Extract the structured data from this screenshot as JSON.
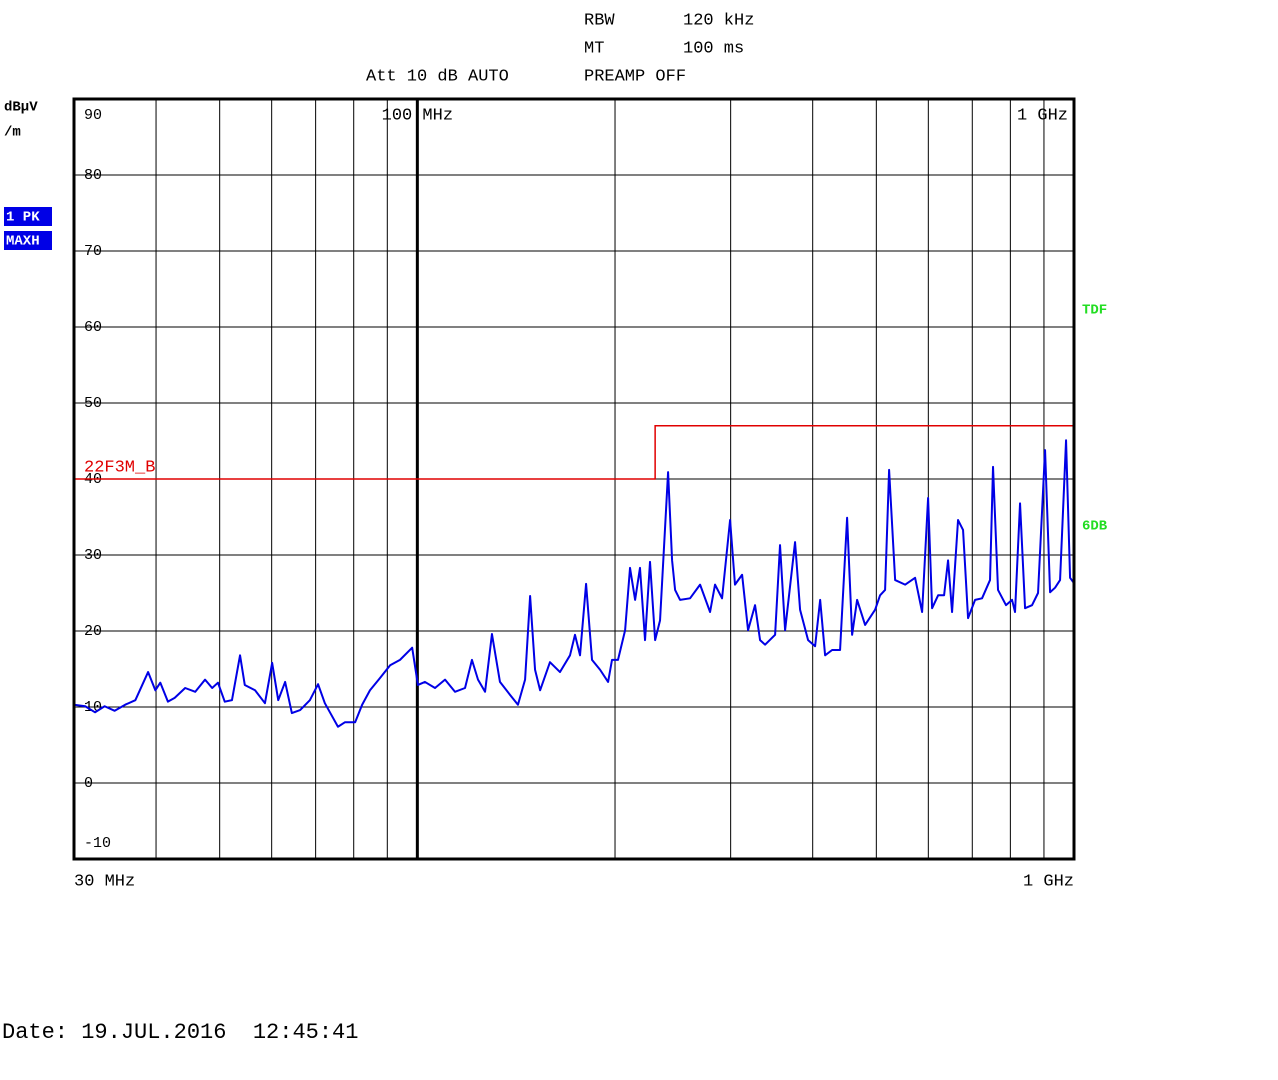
{
  "header": {
    "rbw_label": "RBW",
    "rbw_value": "120 kHz",
    "mt_label": "MT",
    "mt_value": "100 ms",
    "att": "Att 10 dB AUTO",
    "preamp": "PREAMP OFF"
  },
  "side": {
    "unit_1": "dBµV",
    "unit_2": "/m",
    "trace_mode_1": "1 PK",
    "trace_mode_2": "MAXH",
    "marker_tdf": "TDF",
    "marker_6db": "6DB"
  },
  "date": "Date: 19.JUL.2016  12:45:41",
  "chart_data": {
    "type": "line",
    "x_log": true,
    "grid": true,
    "xlim": [
      30,
      1000
    ],
    "ylim": [
      -10,
      90
    ],
    "yticks": [
      -10,
      0,
      10,
      20,
      30,
      40,
      50,
      60,
      70,
      80,
      90
    ],
    "xticks": [
      {
        "value": 30,
        "label": "30 MHz"
      },
      {
        "value": 1000,
        "label": "1 GHz"
      }
    ],
    "xticks_top": [
      {
        "value": 100,
        "label": "100 MHz"
      },
      {
        "value": 1000,
        "label": "1 GHz"
      }
    ],
    "xgrid": [
      40,
      50,
      60,
      70,
      80,
      90,
      100,
      200,
      300,
      400,
      500,
      600,
      700,
      800,
      900
    ],
    "xgrid_bold": [
      100
    ],
    "x": [
      30.0,
      31.2,
      32.3,
      33.4,
      34.6,
      35.9,
      37.2,
      38.9,
      39.9,
      40.6,
      41.7,
      42.7,
      44.3,
      45.9,
      47.5,
      48.7,
      49.7,
      50.9,
      52.2,
      53.7,
      54.6,
      56.6,
      58.6,
      60.1,
      61.4,
      62.9,
      64.4,
      66.3,
      68.6,
      70.6,
      72.3,
      73.6,
      75.7,
      77.6,
      80.4,
      82.4,
      84.7,
      87.7,
      90.9,
      94.1,
      98.2,
      100.2,
      102.7,
      106.4,
      110.2,
      114.1,
      118.2,
      121.1,
      123.7,
      126.8,
      129.9,
      133.6,
      138.4,
      142.3,
      145.9,
      148.5,
      151.1,
      153.8,
      159.2,
      164.9,
      170.8,
      173.8,
      176.9,
      180.7,
      184.5,
      189.8,
      195.2,
      197.9,
      202.1,
      207.2,
      210.8,
      214.6,
      218.3,
      222.2,
      226.1,
      230.2,
      234.2,
      240.9,
      244.3,
      246.9,
      251.2,
      260.2,
      269.5,
      279.1,
      284.0,
      291.1,
      299.4,
      304.6,
      312.3,
      318.9,
      326.8,
      332.6,
      338.5,
      350.6,
      356.7,
      363.1,
      376.0,
      382.7,
      393.6,
      403.4,
      410.6,
      417.8,
      428.2,
      440.3,
      451.3,
      459.3,
      467.4,
      480.7,
      497.9,
      506.6,
      515.6,
      522.9,
      534.1,
      553.1,
      572.8,
      587.1,
      599.5,
      608.0,
      621.0,
      634.1,
      643.0,
      652.1,
      665.9,
      677.7,
      689.7,
      706.9,
      724.4,
      744.9,
      752.8,
      766.1,
      787.9,
      804.7,
      813.2,
      827.6,
      842.3,
      863.2,
      881.5,
      903.5,
      919.5,
      935.8,
      952.3,
      972.5,
      986.3,
      1000.0
    ],
    "series": [
      {
        "color": "#0000e6",
        "values": [
          10.3,
          10.1,
          9.3,
          10.1,
          9.5,
          10.3,
          10.9,
          14.6,
          12.2,
          13.2,
          10.7,
          11.2,
          12.5,
          12.0,
          13.6,
          12.5,
          13.2,
          10.7,
          10.9,
          16.8,
          12.9,
          12.2,
          10.5,
          15.8,
          10.9,
          13.3,
          9.2,
          9.6,
          10.9,
          13.0,
          10.5,
          9.3,
          7.4,
          8.0,
          8.0,
          10.3,
          12.2,
          13.8,
          15.5,
          16.2,
          17.8,
          12.9,
          13.3,
          12.5,
          13.6,
          12.0,
          12.5,
          16.2,
          13.6,
          12.0,
          19.6,
          13.3,
          11.6,
          10.3,
          13.6,
          24.6,
          14.9,
          12.2,
          15.9,
          14.6,
          16.8,
          19.5,
          16.8,
          26.2,
          16.2,
          14.9,
          13.3,
          16.2,
          16.2,
          20.1,
          28.3,
          24.1,
          28.3,
          18.8,
          29.1,
          18.8,
          21.4,
          40.9,
          29.3,
          25.4,
          24.1,
          24.3,
          26.1,
          22.5,
          26.1,
          24.3,
          34.6,
          26.1,
          27.4,
          20.1,
          23.4,
          18.8,
          18.2,
          19.5,
          31.3,
          20.1,
          31.7,
          22.8,
          18.8,
          18.0,
          24.1,
          16.8,
          17.5,
          17.5,
          34.9,
          19.5,
          24.1,
          20.8,
          22.8,
          24.7,
          25.4,
          41.2,
          26.7,
          26.1,
          27.0,
          22.5,
          37.5,
          23.0,
          24.7,
          24.7,
          29.3,
          22.5,
          34.6,
          33.3,
          21.7,
          24.1,
          24.3,
          26.7,
          41.6,
          25.4,
          23.4,
          24.1,
          22.5,
          36.8,
          23.0,
          23.4,
          25.0,
          43.8,
          25.1,
          25.7,
          26.7,
          45.1,
          27.0,
          26.3
        ]
      }
    ],
    "limit_line": {
      "name": "22F3M_B",
      "color": "#e00000",
      "x": [
        30,
        230.2,
        230.2,
        1000
      ],
      "values": [
        40,
        40,
        47,
        47
      ]
    }
  }
}
